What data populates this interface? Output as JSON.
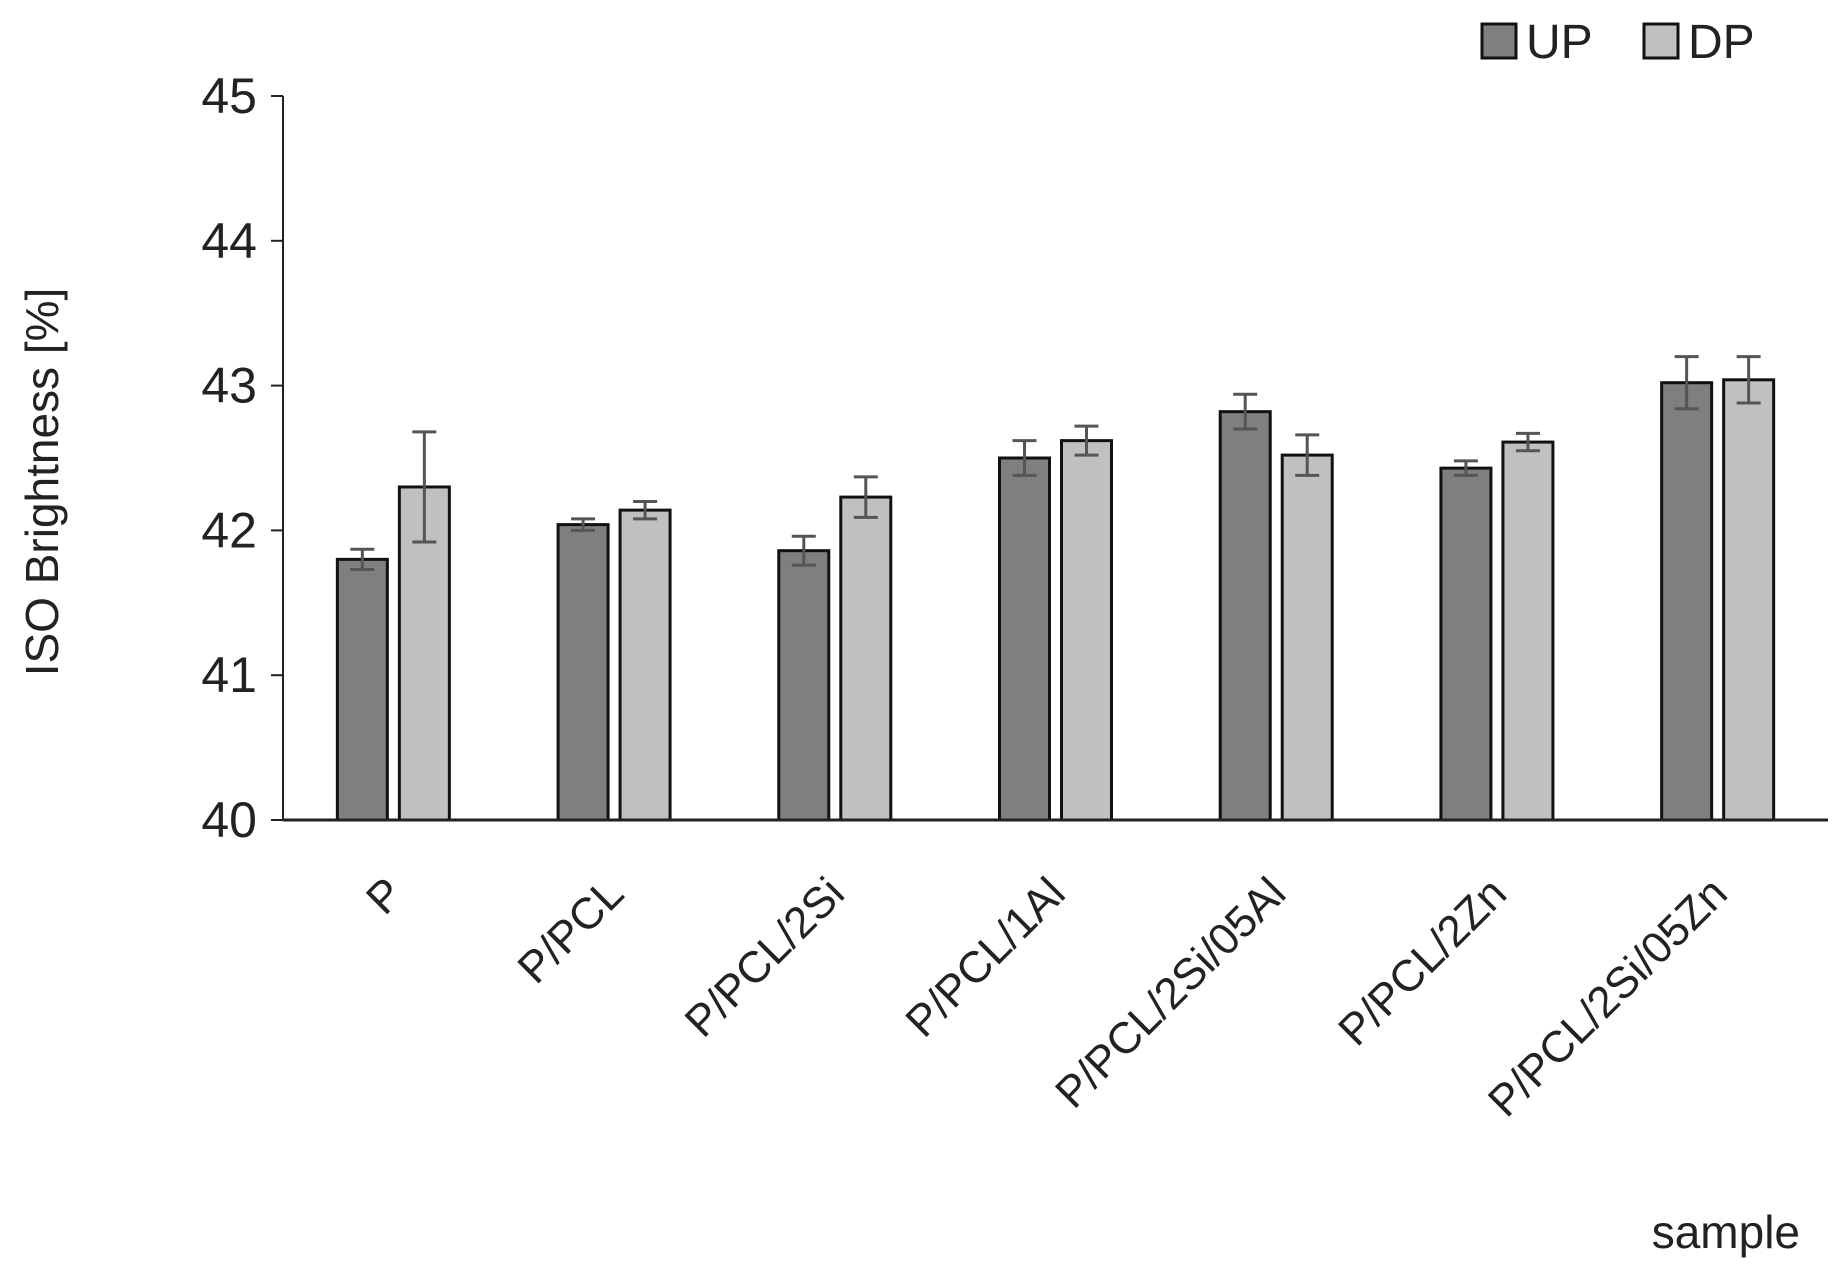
{
  "chart_data": {
    "type": "bar",
    "title": "",
    "xlabel": "sample",
    "ylabel": "ISO Brightness [%]",
    "ylim": [
      40,
      45
    ],
    "yticks": [
      40,
      41,
      42,
      43,
      44,
      45
    ],
    "grid": false,
    "legend_position": "top-right",
    "categories": [
      "P",
      "P/PCL",
      "P/PCL/2Si",
      "P/PCL/1Al",
      "P/PCL/2Si/05Al",
      "P/PCL/2Zn",
      "P/PCL/2Si/05Zn"
    ],
    "series": [
      {
        "name": "UP",
        "color": "#7f7f7f",
        "values": [
          41.8,
          42.04,
          41.86,
          42.5,
          42.82,
          42.43,
          43.02
        ],
        "errors": [
          0.07,
          0.04,
          0.1,
          0.12,
          0.12,
          0.05,
          0.18
        ]
      },
      {
        "name": "DP",
        "color": "#c0c0c0",
        "values": [
          42.3,
          42.14,
          42.23,
          42.62,
          42.52,
          42.61,
          43.04
        ],
        "errors": [
          0.38,
          0.06,
          0.14,
          0.1,
          0.14,
          0.06,
          0.16
        ]
      }
    ]
  }
}
